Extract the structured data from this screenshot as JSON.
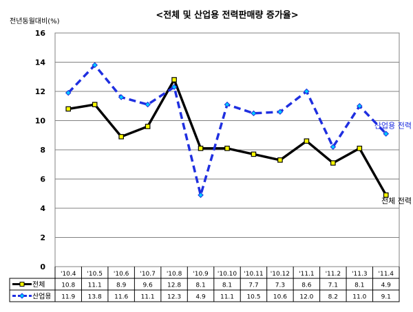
{
  "chart_data": {
    "type": "line",
    "title": "<전체 및 산업용 전력판매량 증가율>",
    "ylabel": "전년동월대비(%)",
    "xlabel": "",
    "ylim": [
      0,
      16
    ],
    "yticks": [
      0,
      2,
      4,
      6,
      8,
      10,
      12,
      14,
      16
    ],
    "grid": true,
    "categories": [
      "'10.4",
      "'10.5",
      "'10.6",
      "'10.7",
      "'10.8",
      "'10.9",
      "'10.10",
      "'10.11",
      "'10.12",
      "'11.1",
      "'11.2",
      "'11.3",
      "'11.4"
    ],
    "series": [
      {
        "name": "전체",
        "style": "solid",
        "color": "#000000",
        "marker_color": "#ffff00",
        "annotation": "전체 전력",
        "values": [
          10.8,
          11.1,
          8.9,
          9.6,
          12.8,
          8.1,
          8.1,
          7.7,
          7.3,
          8.6,
          7.1,
          8.1,
          4.9
        ],
        "value_labels": [
          "10.8",
          "11.1",
          "8.9",
          "9.6",
          "12.8",
          "8.1",
          "8.1",
          "7.7",
          "7.3",
          "8.6",
          "7.1",
          "8.1",
          "4.9"
        ]
      },
      {
        "name": "산업용",
        "style": "dashed",
        "color": "#1f2fe0",
        "marker_color": "#00ccff",
        "annotation": "산업용 전력",
        "annotation_color": "#1f2fe0",
        "values": [
          11.9,
          13.8,
          11.6,
          11.1,
          12.3,
          4.9,
          11.1,
          10.5,
          10.6,
          12.0,
          8.2,
          11.0,
          9.1
        ],
        "value_labels": [
          "11.9",
          "13.8",
          "11.6",
          "11.1",
          "12.3",
          "4.9",
          "11.1",
          "10.5",
          "10.6",
          "12.0",
          "8.2",
          "11.0",
          "9.1"
        ]
      }
    ]
  }
}
